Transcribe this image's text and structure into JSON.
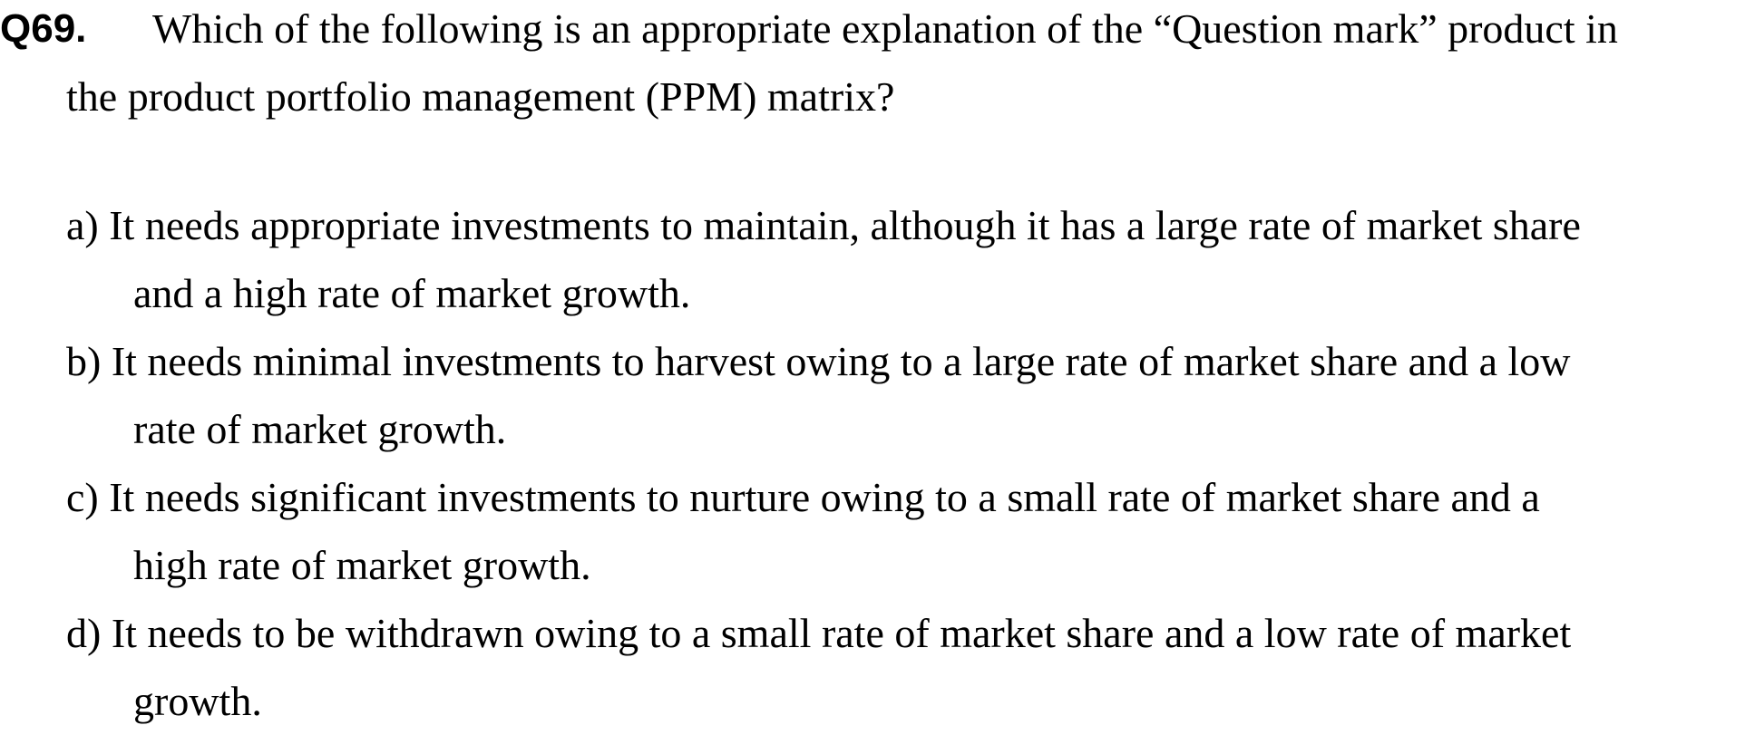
{
  "question": {
    "number": "Q69.",
    "line1": "Which of the following is an appropriate explanation of the “Question mark” product in",
    "line2": "the product portfolio management (PPM) matrix?"
  },
  "choices": [
    {
      "line1": "a) It needs appropriate investments to maintain, although it has a large rate of market share",
      "line2": "and a high rate of market growth."
    },
    {
      "line1": "b) It needs minimal investments to harvest owing to a large rate of market share and a low",
      "line2": "rate of market growth."
    },
    {
      "line1": "c) It needs significant investments to nurture owing to a small rate of market share and a",
      "line2": "high rate of market growth."
    },
    {
      "line1": "d) It needs to be withdrawn owing to a small rate of market share and a low rate of market",
      "line2": "growth."
    }
  ]
}
